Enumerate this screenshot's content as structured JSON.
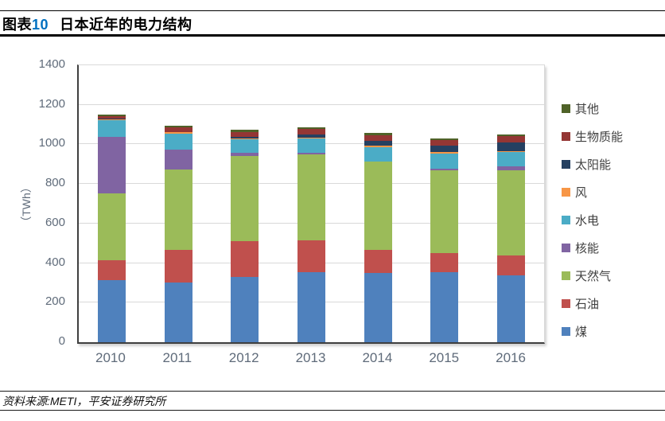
{
  "header": {
    "tag_prefix": "图表",
    "tag_number": "10",
    "title": "日本近年的电力结构"
  },
  "footer": {
    "source": "资料来源:METI，平安证券研究所"
  },
  "chart_data": {
    "type": "bar",
    "stacked": true,
    "title": "日本近年的电力结构",
    "xlabel": "",
    "ylabel": "（TWh）",
    "ylim": [
      0,
      1400
    ],
    "yticks": [
      0,
      200,
      400,
      600,
      800,
      1000,
      1200,
      1400
    ],
    "grid": true,
    "legend_position": "right",
    "categories": [
      "2010",
      "2011",
      "2012",
      "2013",
      "2014",
      "2015",
      "2016"
    ],
    "series": [
      {
        "key": "coal",
        "name": "煤",
        "color": "#4F81BD",
        "values": [
          315,
          300,
          330,
          355,
          350,
          355,
          340
        ]
      },
      {
        "key": "oil",
        "name": "石油",
        "color": "#C0504D",
        "values": [
          100,
          165,
          180,
          160,
          115,
          95,
          98
        ]
      },
      {
        "key": "natural-gas",
        "name": "天然气",
        "color": "#9BBB59",
        "values": [
          337,
          408,
          430,
          435,
          450,
          420,
          432
        ]
      },
      {
        "key": "nuclear",
        "name": "核能",
        "color": "#8064A2",
        "values": [
          288,
          102,
          16,
          9,
          0,
          9,
          18
        ]
      },
      {
        "key": "hydro",
        "name": "水电",
        "color": "#4BACC6",
        "values": [
          84,
          80,
          70,
          70,
          72,
          75,
          72
        ]
      },
      {
        "key": "wind",
        "name": "风",
        "color": "#F79646",
        "values": [
          4,
          6,
          6,
          6,
          6,
          6,
          7
        ]
      },
      {
        "key": "solar",
        "name": "太阳能",
        "color": "#254061",
        "values": [
          1,
          2,
          8,
          15,
          25,
          35,
          44
        ]
      },
      {
        "key": "biomass",
        "name": "生物质能",
        "color": "#943634",
        "values": [
          14,
          22,
          24,
          28,
          30,
          28,
          30
        ]
      },
      {
        "key": "other",
        "name": "其他",
        "color": "#4F6228",
        "values": [
          8,
          10,
          10,
          10,
          10,
          8,
          8
        ]
      }
    ],
    "legend_order_top_to_bottom": [
      "其他",
      "生物质能",
      "太阳能",
      "风",
      "水电",
      "核能",
      "天然气",
      "石油",
      "煤"
    ]
  }
}
